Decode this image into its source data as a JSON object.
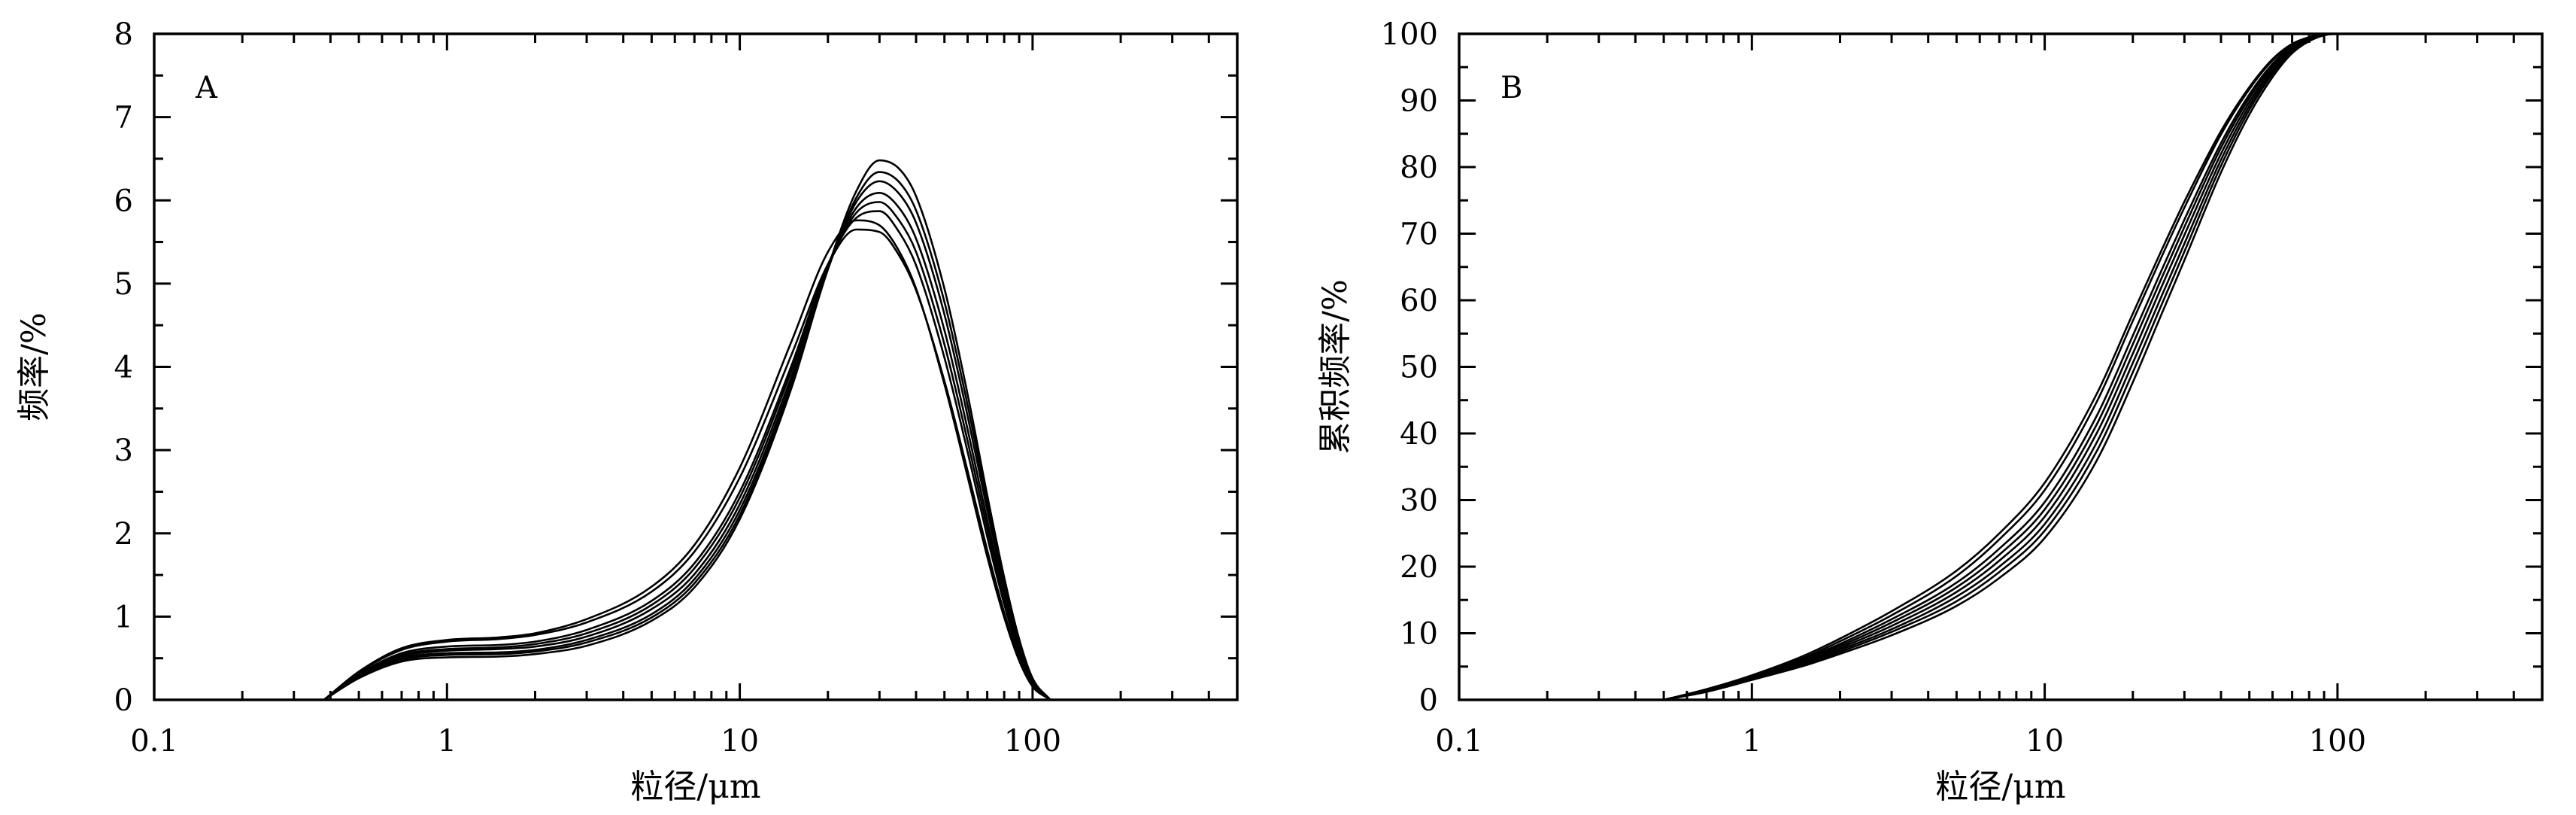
{
  "chart_data": [
    {
      "type": "line",
      "panel_label": "A",
      "xlabel": "粒径/μm",
      "ylabel": "频率/%",
      "x_scale": "log",
      "xlim": [
        0.1,
        500
      ],
      "ylim": [
        0,
        8
      ],
      "xticks": [
        0.1,
        1,
        10,
        100
      ],
      "xtick_labels": [
        "0.1",
        "1",
        "10",
        "100"
      ],
      "yticks": [
        0,
        1,
        2,
        3,
        4,
        5,
        6,
        7,
        8
      ],
      "ytick_labels": [
        "0",
        "1",
        "2",
        "3",
        "4",
        "5",
        "6",
        "7",
        "8"
      ],
      "grid": false,
      "x": [
        0.38,
        0.5,
        0.7,
        1,
        1.5,
        2,
        3,
        5,
        7,
        10,
        15,
        20,
        25,
        30,
        35,
        40,
        50,
        60,
        70,
        80,
        90,
        100,
        115
      ],
      "series": [
        {
          "values": [
            0,
            0.34,
            0.62,
            0.72,
            0.75,
            0.8,
            0.97,
            1.36,
            1.86,
            2.79,
            4.3,
            5.38,
            5.76,
            5.7,
            5.39,
            4.94,
            3.79,
            2.68,
            1.72,
            0.99,
            0.47,
            0.16,
            0
          ]
        },
        {
          "values": [
            0,
            0.33,
            0.6,
            0.7,
            0.73,
            0.78,
            0.93,
            1.3,
            1.78,
            2.67,
            4.14,
            5.23,
            5.65,
            5.62,
            5.34,
            4.92,
            3.83,
            2.75,
            1.8,
            1.05,
            0.51,
            0.18,
            0
          ]
        },
        {
          "values": [
            0,
            0.31,
            0.56,
            0.64,
            0.66,
            0.7,
            0.84,
            1.19,
            1.64,
            2.5,
            4.01,
            5.23,
            5.79,
            5.87,
            5.62,
            5.22,
            4.11,
            2.98,
            1.96,
            1.15,
            0.56,
            0.2,
            0
          ]
        },
        {
          "values": [
            0,
            0.3,
            0.54,
            0.61,
            0.63,
            0.67,
            0.8,
            1.14,
            1.58,
            2.43,
            3.95,
            5.21,
            5.85,
            5.98,
            5.76,
            5.38,
            4.27,
            3.11,
            2.06,
            1.22,
            0.6,
            0.21,
            0
          ]
        },
        {
          "values": [
            0,
            0.29,
            0.52,
            0.59,
            0.61,
            0.64,
            0.76,
            1.09,
            1.51,
            2.35,
            3.88,
            5.19,
            5.91,
            6.09,
            5.91,
            5.54,
            4.44,
            3.25,
            2.16,
            1.28,
            0.63,
            0.22,
            0
          ]
        },
        {
          "values": [
            0,
            0.28,
            0.5,
            0.56,
            0.57,
            0.6,
            0.72,
            1.03,
            1.45,
            2.28,
            3.82,
            5.18,
            5.98,
            6.23,
            6.08,
            5.73,
            4.63,
            3.41,
            2.28,
            1.36,
            0.67,
            0.24,
            0
          ]
        },
        {
          "values": [
            0,
            0.27,
            0.48,
            0.54,
            0.55,
            0.58,
            0.69,
            0.99,
            1.4,
            2.22,
            3.77,
            5.17,
            6.03,
            6.34,
            6.22,
            5.88,
            4.78,
            3.54,
            2.37,
            1.41,
            0.7,
            0.25,
            0
          ]
        },
        {
          "values": [
            0,
            0.26,
            0.46,
            0.51,
            0.52,
            0.55,
            0.65,
            0.95,
            1.35,
            2.17,
            3.74,
            5.19,
            6.11,
            6.48,
            6.38,
            6.05,
            4.94,
            3.67,
            2.46,
            1.47,
            0.73,
            0.26,
            0
          ]
        }
      ]
    },
    {
      "type": "line",
      "panel_label": "B",
      "xlabel": "粒径/μm",
      "ylabel": "累积频率/%",
      "x_scale": "log",
      "xlim": [
        0.1,
        500
      ],
      "ylim": [
        0,
        100
      ],
      "xticks": [
        0.1,
        1,
        10,
        100
      ],
      "xtick_labels": [
        "0.1",
        "1",
        "10",
        "100"
      ],
      "yticks": [
        0,
        10,
        20,
        30,
        40,
        50,
        60,
        70,
        80,
        90,
        100
      ],
      "ytick_labels": [
        "0",
        "10",
        "20",
        "30",
        "40",
        "50",
        "60",
        "70",
        "80",
        "90",
        "100"
      ],
      "grid": false,
      "x": [
        0.5,
        0.7,
        1,
        1.5,
        2,
        3,
        5,
        7,
        10,
        15,
        20,
        25,
        30,
        40,
        50,
        60,
        70,
        80,
        90,
        100,
        120
      ],
      "series": [
        {
          "values": [
            0,
            1.6,
            3.7,
            6.6,
            9.2,
            13.3,
            19.4,
            25,
            32.6,
            45.8,
            58,
            67.4,
            74.8,
            85.4,
            92,
            96.2,
            98.5,
            99.5,
            100,
            100,
            100
          ]
        },
        {
          "values": [
            0,
            1.5,
            3.6,
            6.3,
            8.8,
            12.7,
            18.6,
            24.1,
            31.5,
            44.6,
            56.9,
            66.4,
            73.9,
            84.9,
            91.7,
            96,
            98.4,
            99.5,
            100,
            100,
            100
          ]
        },
        {
          "values": [
            0,
            1.5,
            3.5,
            6.1,
            8.4,
            12.1,
            17.6,
            22.7,
            29.7,
            42.5,
            54.7,
            64.4,
            72.1,
            83.6,
            90.9,
            95.5,
            98.2,
            99.4,
            100,
            100,
            100
          ]
        },
        {
          "values": [
            0,
            1.4,
            3.4,
            5.9,
            8.1,
            11.6,
            16.9,
            21.8,
            28.6,
            41.2,
            53.4,
            63.2,
            71,
            82.9,
            90.4,
            95.2,
            98,
            99.3,
            100,
            100,
            100
          ]
        },
        {
          "values": [
            0,
            1.4,
            3.3,
            5.7,
            7.8,
            11.1,
            16.2,
            20.9,
            27.5,
            39.9,
            52,
            61.9,
            69.8,
            82,
            89.8,
            94.8,
            97.8,
            99.2,
            99.9,
            100,
            100
          ]
        },
        {
          "values": [
            0,
            1.3,
            3.2,
            5.5,
            7.5,
            10.6,
            15.5,
            20,
            26.4,
            38.5,
            50.6,
            60.5,
            68.5,
            81.1,
            89.2,
            94.4,
            97.6,
            99.1,
            99.9,
            100,
            100
          ]
        },
        {
          "values": [
            0,
            1.3,
            3.1,
            5.3,
            7.2,
            10.2,
            14.8,
            19.2,
            25.4,
            37.2,
            49.2,
            59.2,
            67.3,
            80.2,
            88.6,
            94,
            97.4,
            99,
            99.8,
            100,
            100
          ]
        },
        {
          "values": [
            0,
            1.2,
            3,
            5.1,
            6.9,
            9.7,
            14.1,
            18.3,
            24.3,
            35.8,
            47.7,
            57.8,
            66,
            79.2,
            87.9,
            93.5,
            97.1,
            98.9,
            99.8,
            100,
            100
          ]
        }
      ]
    }
  ]
}
